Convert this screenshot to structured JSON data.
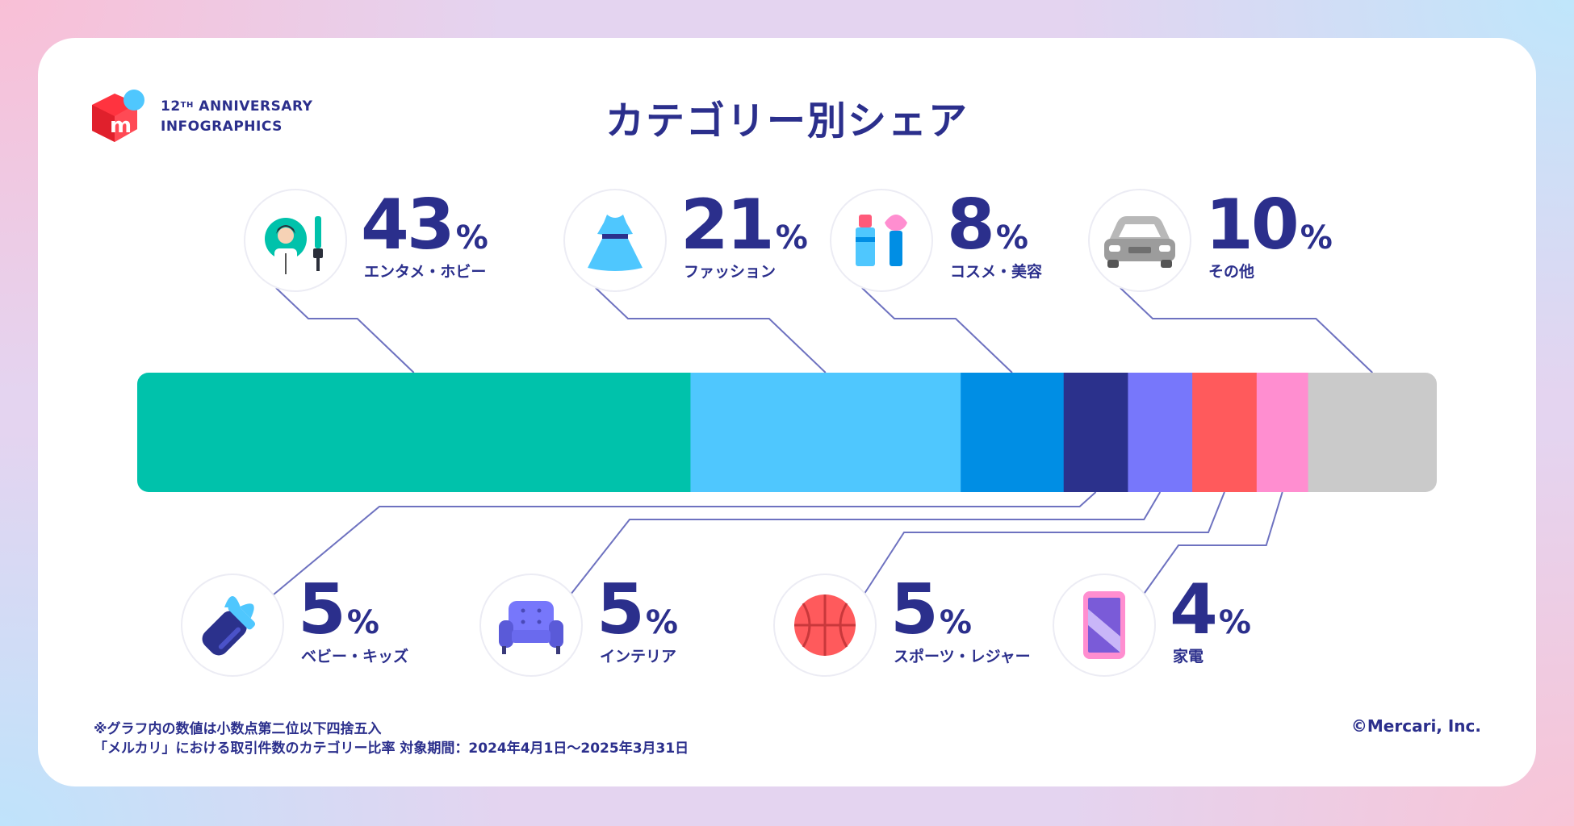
{
  "header": {
    "anniversary_line1": "12",
    "anniversary_sup": "TH",
    "anniversary_line1_rest": " ANNIVERSARY",
    "anniversary_line2": "INFOGRAPHICS",
    "logo_letter": "m"
  },
  "title": "カテゴリー別シェア",
  "chart_data": {
    "type": "bar",
    "orientation": "horizontal-stacked-100",
    "title": "カテゴリー別シェア",
    "unit": "%",
    "segments": [
      {
        "name": "エンタメ・ホビー",
        "value": 43,
        "color": "#00c2ab",
        "icon": "entertainment-hobby-icon",
        "position": "top"
      },
      {
        "name": "ファッション",
        "value": 21,
        "color": "#4fc7fe",
        "icon": "dress-icon",
        "position": "top"
      },
      {
        "name": "コスメ・美容",
        "value": 8,
        "color": "#008ee4",
        "icon": "cosmetics-icon",
        "position": "top"
      },
      {
        "name": "ベビー・キッズ",
        "value": 5,
        "color": "#2b318c",
        "icon": "baby-bottle-icon",
        "position": "bottom"
      },
      {
        "name": "インテリア",
        "value": 5,
        "color": "#7777fb",
        "icon": "armchair-icon",
        "position": "bottom"
      },
      {
        "name": "スポーツ・レジャー",
        "value": 5,
        "color": "#ff5a5c",
        "icon": "basketball-icon",
        "position": "bottom"
      },
      {
        "name": "家電",
        "value": 4,
        "color": "#ff8ed0",
        "icon": "smartphone-icon",
        "position": "bottom"
      },
      {
        "name": "その他",
        "value": 10,
        "color": "#cacaca",
        "icon": "car-icon",
        "position": "top"
      }
    ]
  },
  "colors": {
    "text": "#2b2f8c",
    "line": "#6e72c0",
    "card": "#ffffff"
  },
  "footer": {
    "note_line1": "※グラフ内の数値は小数点第二位以下四捨五入",
    "note_line2": "「メルカリ」における取引件数のカテゴリー比率 対象期間：2024年4月1日〜2025年3月31日",
    "copyright": "©Mercari, Inc."
  }
}
